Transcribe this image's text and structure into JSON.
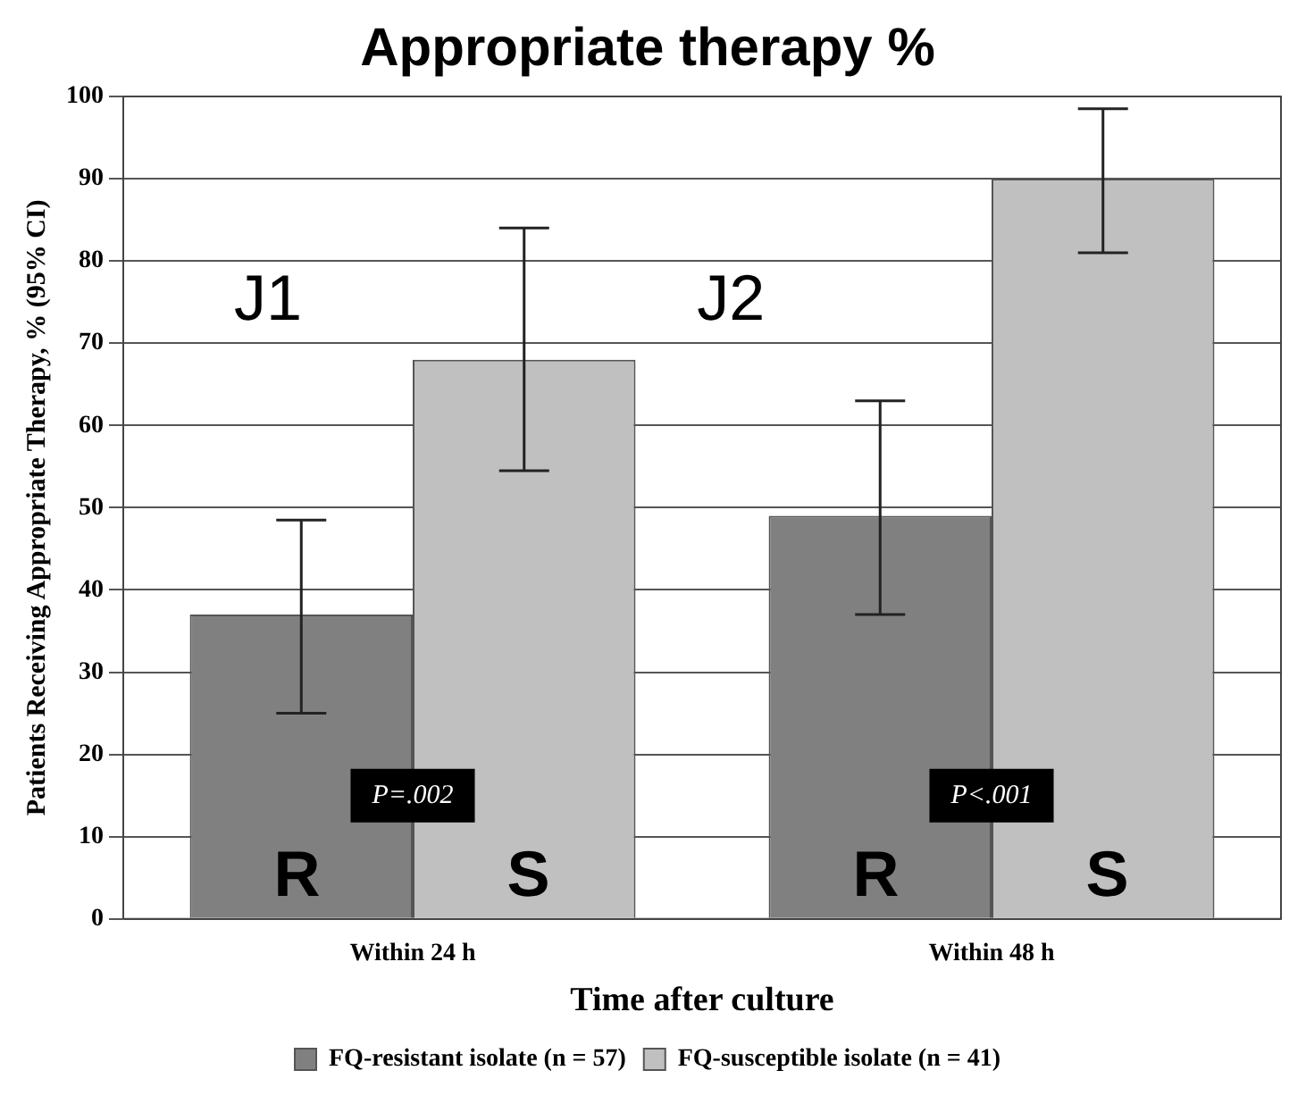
{
  "chart_data": {
    "type": "bar",
    "title": "Appropriate therapy %",
    "xlabel": "Time after culture",
    "ylabel": "Patients Receiving Appropriate Therapy, % (95% CI)",
    "categories": [
      "Within 24 h",
      "Within 48 h"
    ],
    "series": [
      {
        "name": "FQ-resistant isolate (n = 57)",
        "color": "#808080",
        "values": [
          37,
          49
        ],
        "errors": [
          [
            25,
            48.5
          ],
          [
            37,
            63
          ]
        ]
      },
      {
        "name": "FQ-susceptible isolate (n = 41)",
        "color": "#c0c0c0",
        "values": [
          68,
          90
        ],
        "errors": [
          [
            54.5,
            84
          ],
          [
            81,
            98.5
          ]
        ]
      }
    ],
    "ylim": [
      0,
      100
    ],
    "yticks": [
      0,
      10,
      20,
      30,
      40,
      50,
      60,
      70,
      80,
      90,
      100
    ],
    "grid": "y",
    "legend": "bottom",
    "annotations": [
      "J1",
      "J2",
      "R",
      "S",
      "R",
      "S",
      "P=.002",
      "P<.001"
    ]
  }
}
